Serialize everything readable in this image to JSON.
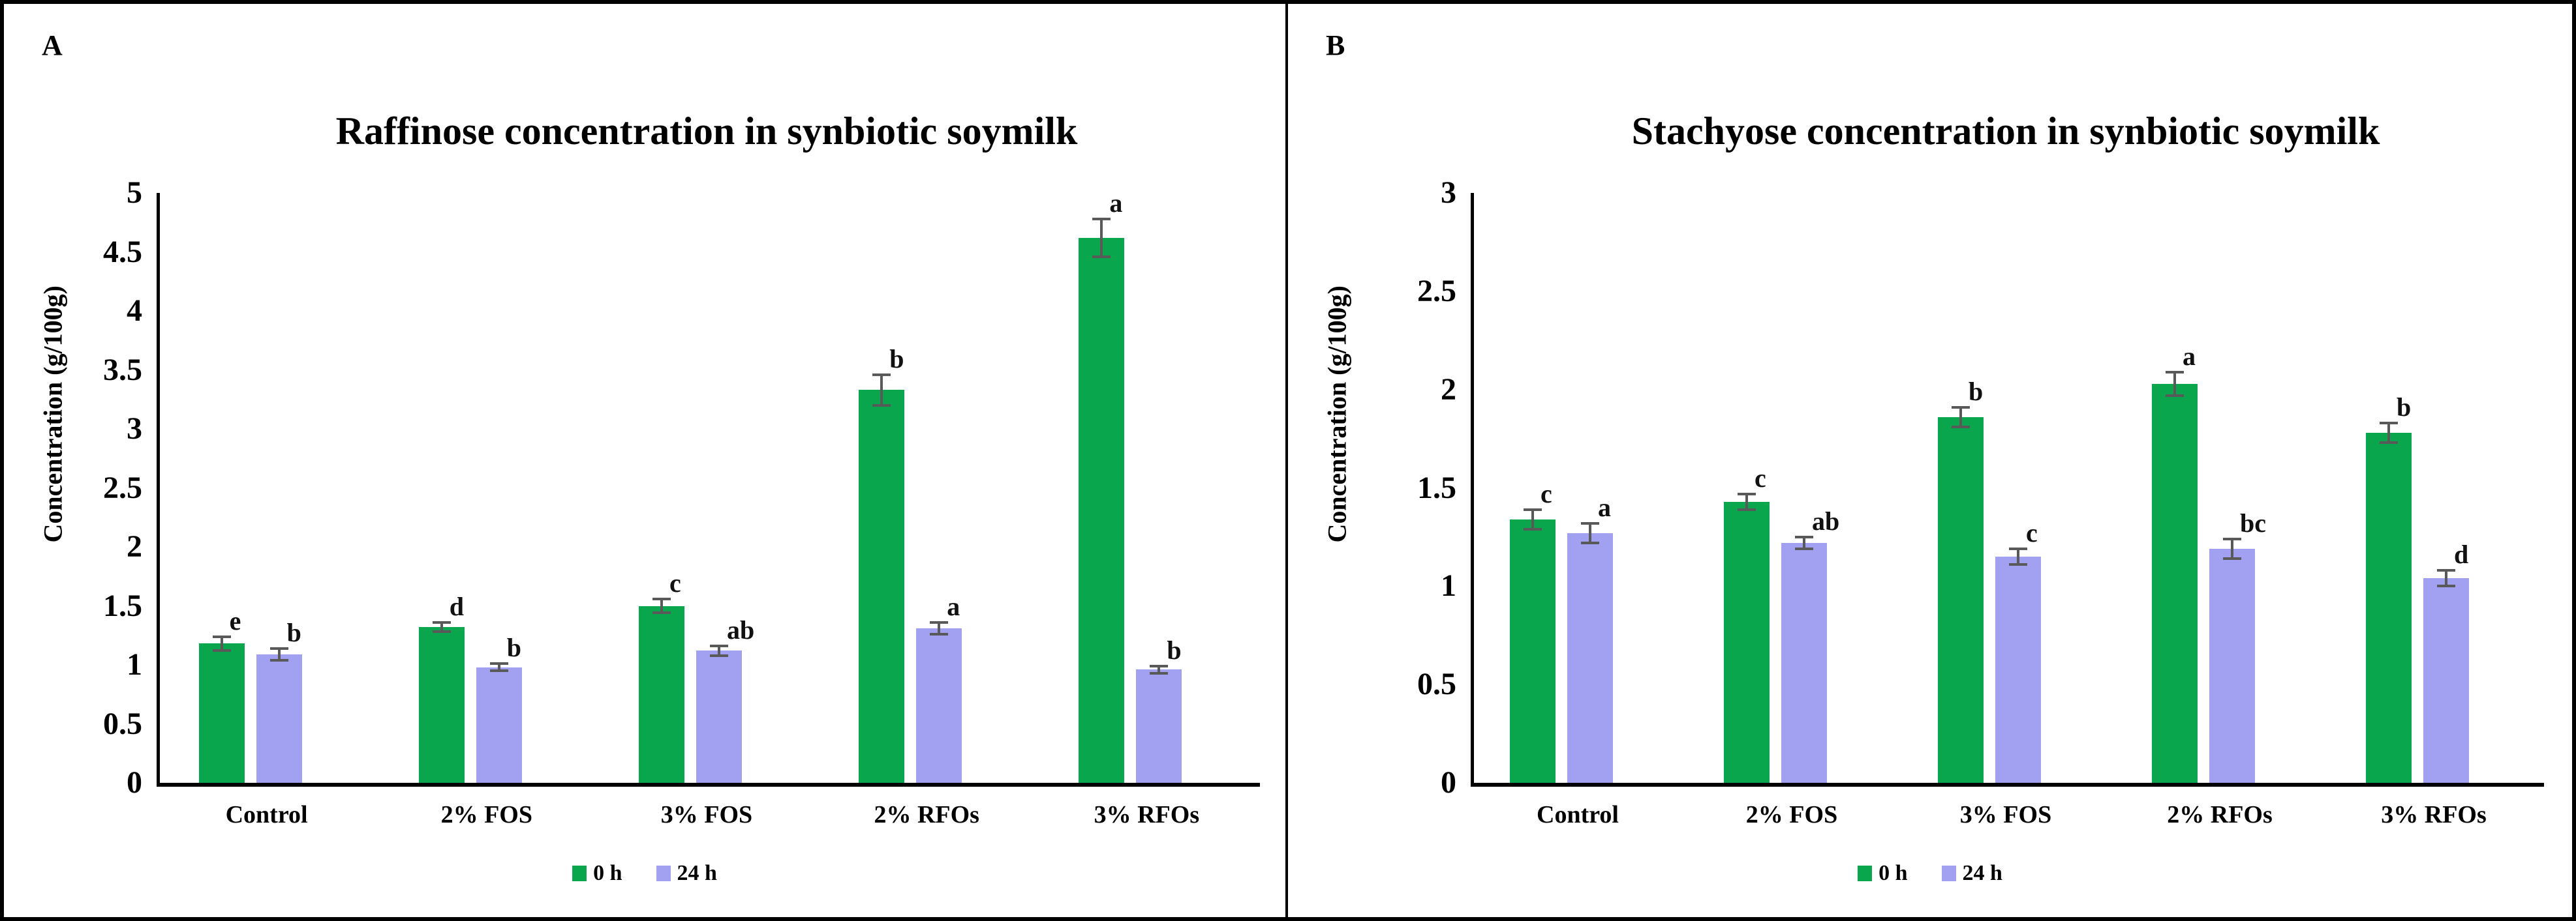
{
  "colors": {
    "series_0h": "#0aa64d",
    "series_24h": "#a2a0f0",
    "error_bar": "#595959",
    "axis": "#000000",
    "text": "#000000",
    "border": "#000000",
    "background": "#ffffff"
  },
  "chart_data": [
    {
      "type": "bar",
      "panel_label": "A",
      "title": "Raffinose concentration in synbiotic soymilk",
      "xlabel": "",
      "ylabel": "Concentration (g/100g)",
      "categories": [
        "Control",
        "2% FOS",
        "3% FOS",
        "2% RFOs",
        "3% RFOs"
      ],
      "series": [
        {
          "name": "0 h",
          "color": "#0aa64d",
          "values": [
            1.18,
            1.32,
            1.5,
            3.33,
            4.62
          ],
          "errors": [
            0.06,
            0.04,
            0.06,
            0.13,
            0.16
          ],
          "letters": [
            "e",
            "d",
            "c",
            "b",
            "a"
          ]
        },
        {
          "name": "24 h",
          "color": "#a2a0f0",
          "values": [
            1.09,
            0.98,
            1.12,
            1.31,
            0.96
          ],
          "errors": [
            0.05,
            0.03,
            0.04,
            0.05,
            0.03
          ],
          "letters": [
            "b",
            "b",
            "ab",
            "a",
            "b"
          ]
        }
      ],
      "ylim": [
        0,
        5
      ],
      "ytick_step": 0.5,
      "ytick_labels": [
        "0",
        "0.5",
        "1",
        "1.5",
        "2",
        "2.5",
        "3",
        "3.5",
        "4",
        "4.5",
        "5"
      ],
      "grid": false,
      "legend_position": "bottom"
    },
    {
      "type": "bar",
      "panel_label": "B",
      "title": "Stachyose concentration in synbiotic soymilk",
      "xlabel": "",
      "ylabel": "Concentration (g/100g)",
      "categories": [
        "Control",
        "2% FOS",
        "3% FOS",
        "2% RFOs",
        "3% RFOs"
      ],
      "series": [
        {
          "name": "0 h",
          "color": "#0aa64d",
          "values": [
            1.34,
            1.43,
            1.86,
            2.03,
            1.78
          ],
          "errors": [
            0.05,
            0.04,
            0.05,
            0.06,
            0.05
          ],
          "letters": [
            "c",
            "c",
            "b",
            "a",
            "b"
          ]
        },
        {
          "name": "24 h",
          "color": "#a2a0f0",
          "values": [
            1.27,
            1.22,
            1.15,
            1.19,
            1.04
          ],
          "errors": [
            0.05,
            0.03,
            0.04,
            0.05,
            0.04
          ],
          "letters": [
            "a",
            "ab",
            "c",
            "bc",
            "d"
          ]
        }
      ],
      "ylim": [
        0,
        3
      ],
      "ytick_step": 0.5,
      "ytick_labels": [
        "0",
        "0.5",
        "1",
        "1.5",
        "2",
        "2.5",
        "3"
      ],
      "grid": false,
      "legend_position": "bottom"
    }
  ]
}
